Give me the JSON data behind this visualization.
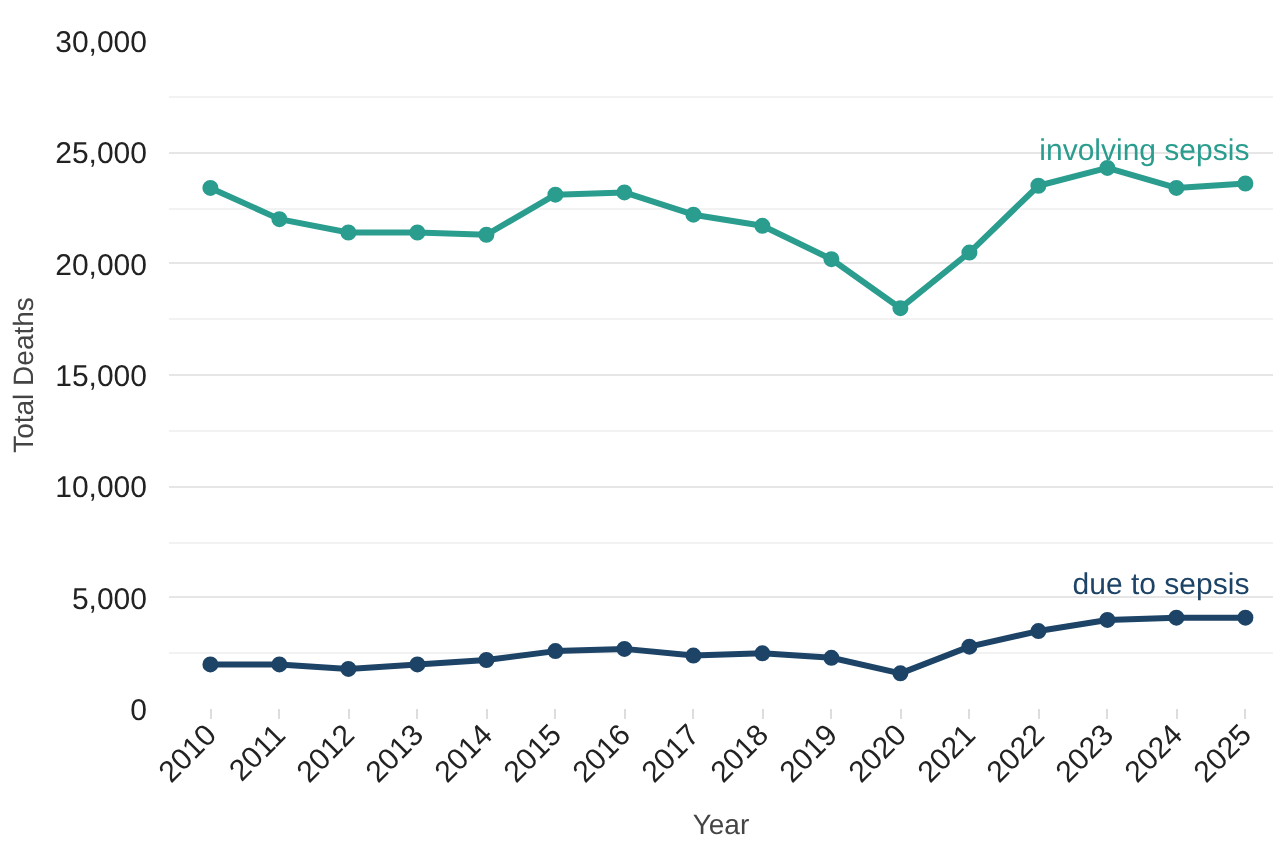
{
  "chart_data": {
    "type": "line",
    "xlabel": "Year",
    "ylabel": "Total Deaths",
    "categories": [
      "2010",
      "2011",
      "2012",
      "2013",
      "2014",
      "2015",
      "2016",
      "2017",
      "2018",
      "2019",
      "2020",
      "2021",
      "2022",
      "2023",
      "2024",
      "2025"
    ],
    "series": [
      {
        "name": "involving sepsis",
        "color": "#2a9d8f",
        "values": [
          23400,
          22000,
          21400,
          21400,
          21300,
          23100,
          23200,
          22200,
          21700,
          20200,
          18000,
          20500,
          23500,
          24300,
          23400,
          23600
        ]
      },
      {
        "name": "due to sepsis",
        "color": "#1d4466",
        "values": [
          2000,
          2000,
          1800,
          2000,
          2200,
          2600,
          2700,
          2400,
          2500,
          2300,
          1600,
          2800,
          3500,
          4000,
          4100,
          4100
        ]
      }
    ],
    "ylim": [
      0,
      30000
    ],
    "yticks": [
      {
        "value": 0,
        "label": "0"
      },
      {
        "value": 5000,
        "label": "5,000"
      },
      {
        "value": 10000,
        "label": "10,000"
      },
      {
        "value": 15000,
        "label": "15,000"
      },
      {
        "value": 20000,
        "label": "20,000"
      },
      {
        "value": 25000,
        "label": "25,000"
      },
      {
        "value": 30000,
        "label": "30,000"
      }
    ],
    "grid": "y",
    "marker": "circle",
    "line_style": "solid",
    "legend": false
  }
}
